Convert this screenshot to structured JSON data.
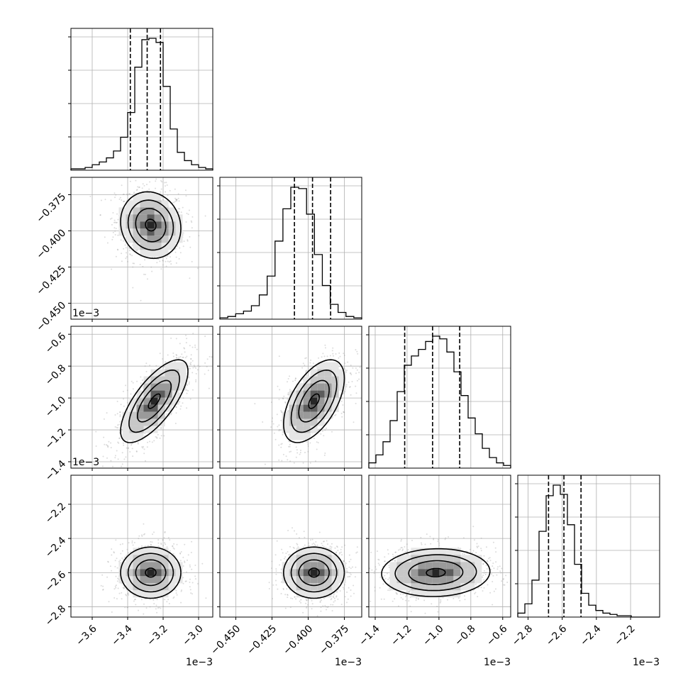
{
  "chart_data": {
    "type": "corner",
    "grid": true,
    "parameters": [
      {
        "ticks": [
          "−3.6",
          "−3.4",
          "−3.2",
          "−3.0"
        ],
        "values": [
          -3.6,
          -3.4,
          -3.2,
          -3.0
        ],
        "offset": "1e−3",
        "range": [
          -3.72,
          -2.92
        ],
        "quantiles": [
          -3.385,
          -3.29,
          -3.215
        ],
        "hist": [
          1,
          1,
          2,
          4,
          6,
          9,
          14,
          24,
          42,
          75,
          95,
          96,
          93,
          61,
          30,
          13,
          7,
          4,
          2,
          1
        ]
      },
      {
        "ticks": [
          "−0.450",
          "−0.425",
          "−0.400",
          "−0.375"
        ],
        "values": [
          -0.45,
          -0.425,
          -0.4,
          -0.375
        ],
        "offset": "1e−3",
        "range": [
          -0.461,
          -0.363
        ],
        "quantiles": [
          -0.4095,
          -0.397,
          -0.3845
        ],
        "hist": [
          1,
          2,
          4,
          6,
          10,
          18,
          32,
          58,
          82,
          98,
          97,
          78,
          48,
          25,
          11,
          5,
          2,
          1
        ]
      },
      {
        "ticks": [
          "−1.4",
          "−1.2",
          "−1.0",
          "−0.8",
          "−0.6"
        ],
        "values": [
          -1.4,
          -1.2,
          -1.0,
          -0.8,
          -0.6
        ],
        "offset": "1e−3",
        "range": [
          -1.44,
          -0.55
        ],
        "quantiles": [
          -1.215,
          -1.04,
          -0.87
        ],
        "hist": [
          4,
          10,
          20,
          36,
          58,
          78,
          85,
          90,
          96,
          100,
          98,
          88,
          73,
          55,
          38,
          26,
          15,
          8,
          4,
          2
        ]
      },
      {
        "ticks": [
          "−2.8",
          "−2.6",
          "−2.4",
          "−2.2"
        ],
        "values": [
          -2.8,
          -2.6,
          -2.4,
          -2.2
        ],
        "offset": "1e−3",
        "range": [
          -2.86,
          -2.03
        ],
        "quantiles": [
          -2.68,
          -2.59,
          -2.49
        ],
        "hist": [
          3,
          10,
          28,
          65,
          92,
          100,
          93,
          70,
          40,
          18,
          9,
          5,
          3,
          2,
          1,
          1,
          0,
          0,
          0,
          0
        ]
      }
    ],
    "ylabels": [
      null,
      {
        "ticks": [
          "−0.375",
          "−0.400",
          "−0.425",
          "−0.450"
        ],
        "values": [
          -0.375,
          -0.4,
          -0.425,
          -0.45
        ],
        "offset": "1e−3"
      },
      {
        "ticks": [
          "−0.6",
          "−0.8",
          "−1.0",
          "−1.2",
          "−1.4"
        ],
        "values": [
          -0.6,
          -0.8,
          -1.0,
          -1.2,
          -1.4
        ],
        "offset": "1e−3"
      },
      {
        "ticks": [
          "−2.2",
          "−2.4",
          "−2.6",
          "−2.8"
        ],
        "values": [
          -2.2,
          -2.4,
          -2.6,
          -2.8
        ],
        "offset": null
      }
    ],
    "pairs": [
      {
        "row": 1,
        "col": 0,
        "mx": -3.27,
        "my": -0.396,
        "sx": 0.085,
        "sy": 0.0115,
        "rho": -0.1
      },
      {
        "row": 2,
        "col": 0,
        "mx": -3.25,
        "my": -1.02,
        "sx": 0.095,
        "sy": 0.13,
        "rho": 0.72
      },
      {
        "row": 2,
        "col": 1,
        "mx": -0.396,
        "my": -1.02,
        "sx": 0.0105,
        "sy": 0.13,
        "rho": 0.55
      },
      {
        "row": 3,
        "col": 0,
        "mx": -3.27,
        "my": -2.6,
        "sx": 0.085,
        "sy": 0.075,
        "rho": 0.0
      },
      {
        "row": 3,
        "col": 1,
        "mx": -0.396,
        "my": -2.6,
        "sx": 0.0105,
        "sy": 0.075,
        "rho": 0.0
      },
      {
        "row": 3,
        "col": 2,
        "mx": -1.02,
        "my": -2.6,
        "sx": 0.17,
        "sy": 0.07,
        "rho": 0.05
      }
    ]
  }
}
